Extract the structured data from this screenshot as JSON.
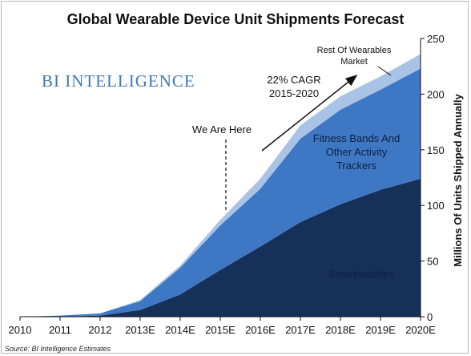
{
  "chart_data": {
    "type": "area",
    "stacked": true,
    "title": "Global Wearable Device Unit Shipments Forecast",
    "ylabel": "Millions Of Units Shipped Annually",
    "xlabel": "",
    "ylim": [
      0,
      250
    ],
    "yticks": [
      0,
      50,
      100,
      150,
      200,
      250
    ],
    "y_axis_side": "right",
    "x": [
      "2010",
      "2011",
      "2012",
      "2013E",
      "2014E",
      "2015E",
      "2016E",
      "2017E",
      "2018E",
      "2019E",
      "2020E"
    ],
    "series": [
      {
        "name": "Smartwatches",
        "values": [
          0,
          0,
          1,
          6,
          20,
          42,
          63,
          85,
          101,
          114,
          124
        ],
        "color": "#16305a"
      },
      {
        "name": "Fitness Bands And Other Activity Trackers",
        "values": [
          0,
          1,
          2,
          8,
          24,
          40,
          52,
          75,
          85,
          90,
          99
        ],
        "color": "#3e78c5"
      },
      {
        "name": "Rest Of Wearables Market",
        "values": [
          0,
          0,
          0,
          1,
          2,
          5,
          9,
          12,
          12,
          12,
          13
        ],
        "color": "#a9c3e6"
      }
    ],
    "annotations": {
      "we_are_here": "We Are Here",
      "cagr_line1": "22% CAGR",
      "cagr_line2": "2015-2020",
      "rest_line1": "Rest Of Wearables",
      "rest_line2": "Market",
      "fitness_line1": "Fitness Bands And",
      "fitness_line2": "Other Activity",
      "fitness_line3": "Trackers",
      "smartwatches": "Smartwatches"
    },
    "legend": "none"
  },
  "brand": "BI INTELLIGENCE",
  "source": "Source: BI Intelligence Estimates"
}
